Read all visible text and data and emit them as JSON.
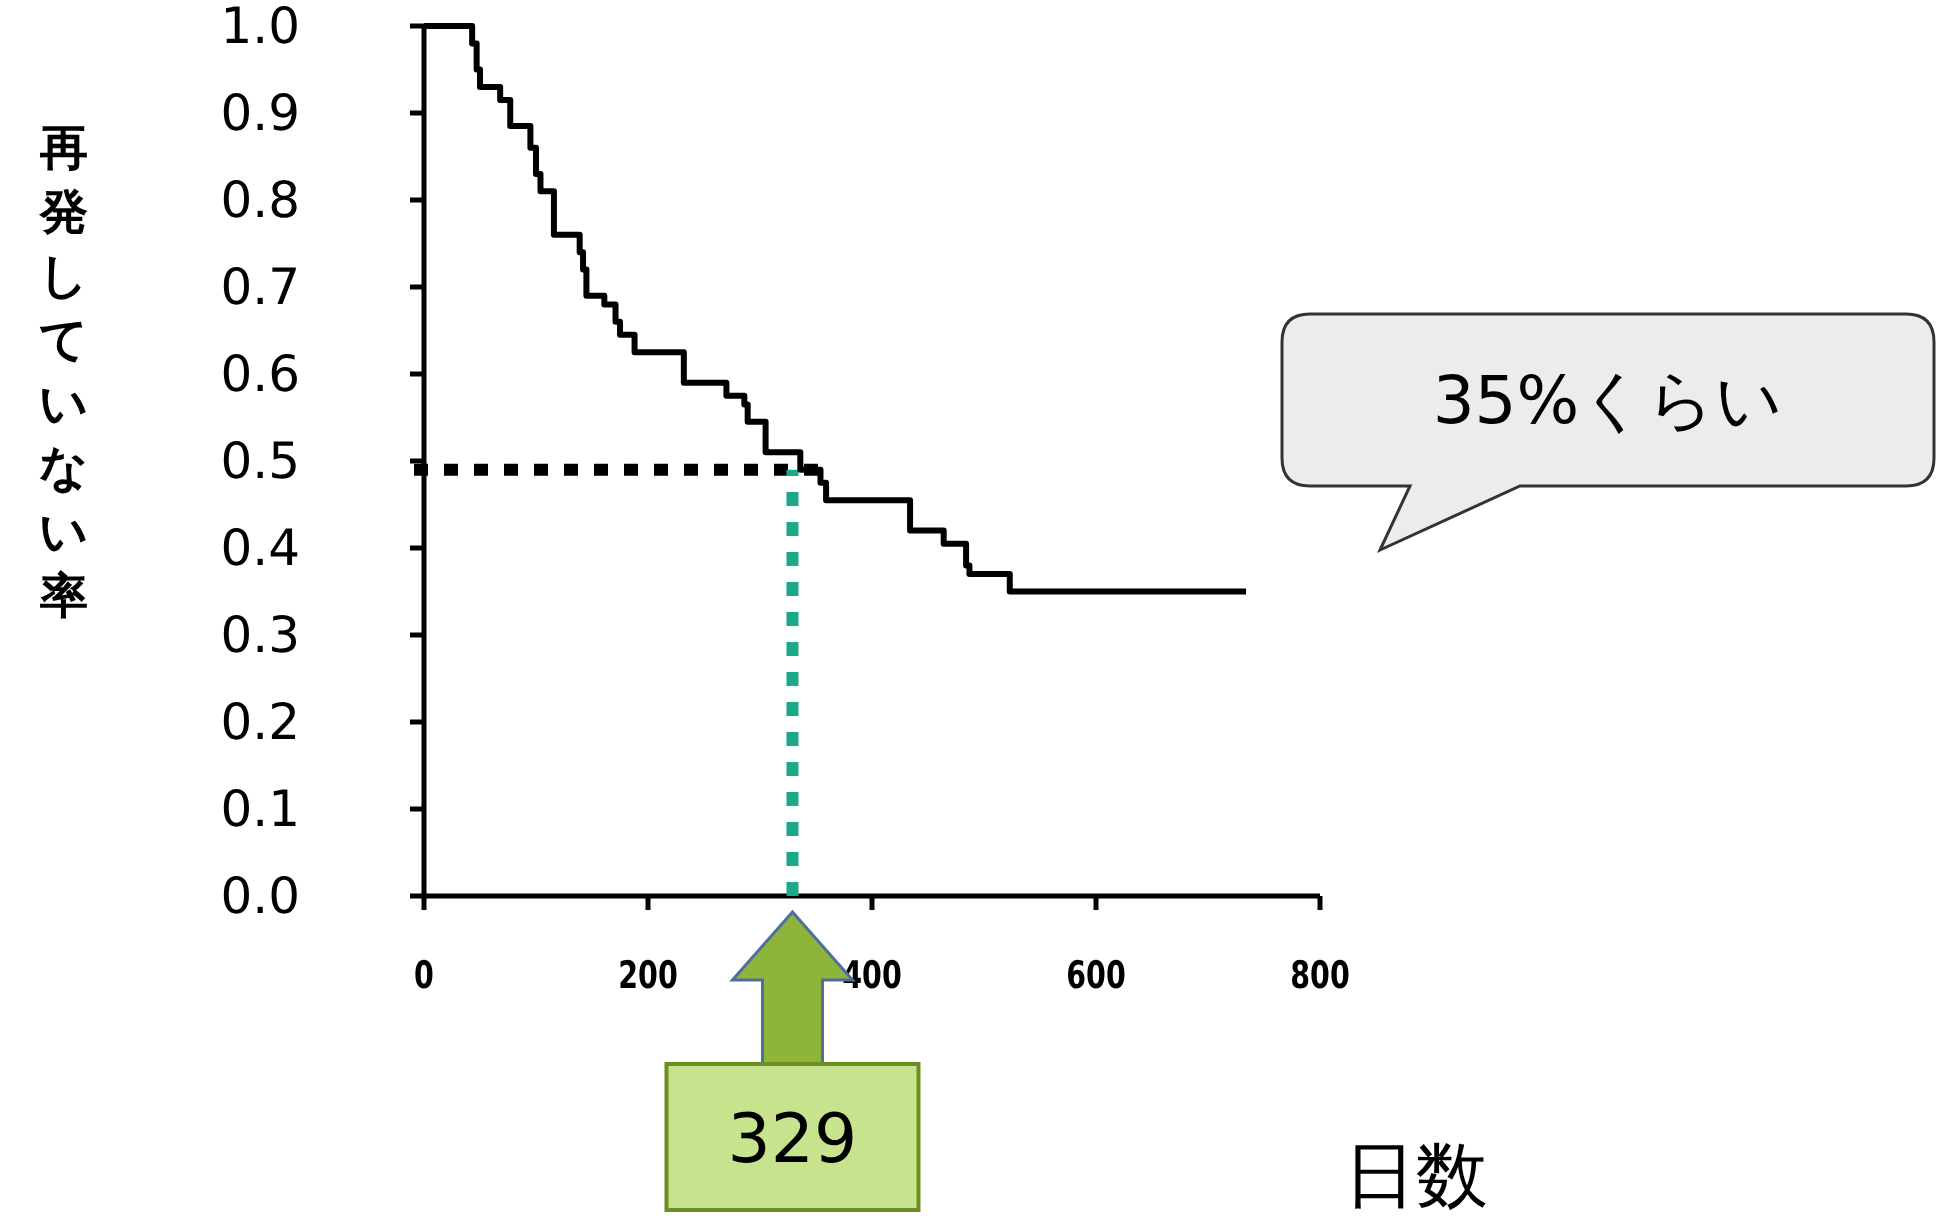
{
  "chart_data": {
    "type": "step",
    "xlabel": "日数",
    "ylabel": "再発していない率",
    "x": [
      0,
      43,
      47,
      50,
      68,
      77,
      95,
      100,
      104,
      116,
      139,
      142,
      145,
      161,
      171,
      175,
      188,
      232,
      270,
      286,
      289,
      305,
      336,
      354,
      359,
      434,
      464,
      484,
      487,
      523,
      734
    ],
    "values": [
      1.0,
      0.98,
      0.95,
      0.93,
      0.915,
      0.885,
      0.86,
      0.83,
      0.81,
      0.76,
      0.74,
      0.72,
      0.69,
      0.68,
      0.66,
      0.645,
      0.625,
      0.59,
      0.575,
      0.565,
      0.545,
      0.51,
      0.49,
      0.475,
      0.455,
      0.42,
      0.405,
      0.38,
      0.37,
      0.35,
      0.35
    ],
    "color": "#000000",
    "xlim": [
      0,
      800
    ],
    "xticks": [
      0,
      200,
      400,
      600,
      800
    ],
    "ylim": [
      0,
      1
    ],
    "yticks": [
      {
        "value": 0,
        "label": "0.0"
      },
      {
        "value": 0.1,
        "label": "0.1"
      },
      {
        "value": 0.2,
        "label": "0.2"
      },
      {
        "value": 0.3,
        "label": "0.3"
      },
      {
        "value": 0.4,
        "label": "0.4"
      },
      {
        "value": 0.5,
        "label": "0.5"
      },
      {
        "value": 0.6,
        "label": "0.6"
      },
      {
        "value": 0.7,
        "label": "0.7"
      },
      {
        "value": 0.8,
        "label": "0.8"
      },
      {
        "value": 0.9,
        "label": "0.9"
      },
      {
        "value": 1,
        "label": "1.0"
      }
    ],
    "ref_lines": [
      {
        "axis": "y",
        "value": 0.49,
        "color": "#000000",
        "line_style": "dotted"
      },
      {
        "axis": "x",
        "value": 329,
        "color": "#1aaa8a",
        "line_style": "dotted"
      }
    ],
    "annotations": [
      "35%くらい",
      {
        "text": "329",
        "x": 329,
        "y": 0
      }
    ]
  }
}
